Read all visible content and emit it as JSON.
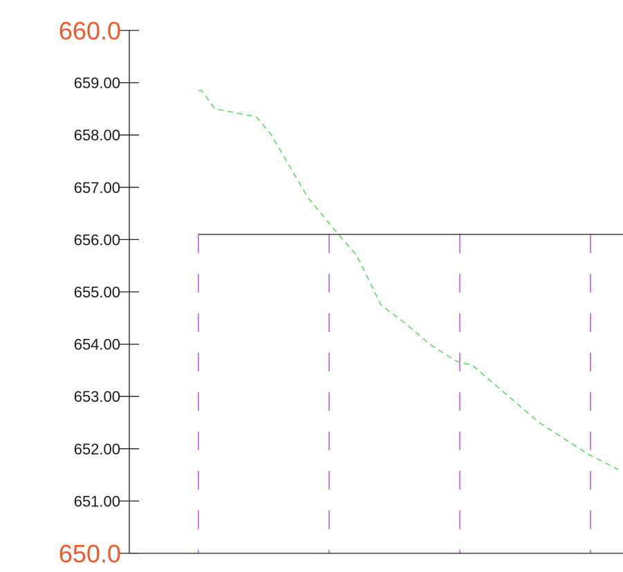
{
  "chart_data": {
    "type": "line",
    "y_axis": {
      "range": [
        650.0,
        660.0
      ],
      "major_labels": [
        "660.0",
        "650.0"
      ],
      "minor_labels": [
        "659.00",
        "658.00",
        "657.00",
        "656.00",
        "655.00",
        "654.00",
        "653.00",
        "652.00",
        "651.00"
      ],
      "minor_values": [
        659,
        658,
        657,
        656,
        655,
        654,
        653,
        652,
        651
      ]
    },
    "grade_line": {
      "elevation": 656.1
    },
    "station_lines": {
      "count": 4
    },
    "series": [
      {
        "points": [
          [
            0.0,
            658.85
          ],
          [
            0.05,
            658.85
          ],
          [
            0.27,
            658.5
          ],
          [
            0.95,
            658.35
          ],
          [
            1.2,
            658.0
          ],
          [
            1.8,
            656.8
          ],
          [
            2.3,
            656.1
          ],
          [
            2.6,
            655.7
          ],
          [
            3.0,
            654.75
          ],
          [
            3.4,
            654.4
          ],
          [
            3.8,
            654.0
          ],
          [
            4.2,
            653.7
          ],
          [
            4.3,
            653.65
          ],
          [
            4.5,
            653.6
          ],
          [
            4.8,
            653.3
          ],
          [
            5.2,
            652.9
          ],
          [
            5.6,
            652.5
          ],
          [
            6.0,
            652.2
          ],
          [
            6.4,
            651.9
          ],
          [
            6.9,
            651.6
          ]
        ]
      }
    ],
    "colors": {
      "axis": "#1a1a1a",
      "major_label": "#f05a28",
      "minor_label": "#1a1a1a",
      "profile": "#33dd33",
      "station": "#cc55ee",
      "grade": "#1a1a1a"
    },
    "grid": false
  }
}
